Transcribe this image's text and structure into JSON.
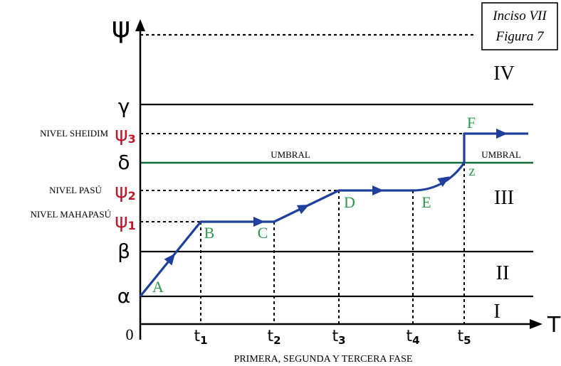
{
  "figure_box": {
    "line1": "Inciso VII",
    "line2": "Figura 7"
  },
  "axes": {
    "y_symbol": "ψ",
    "x_symbol": "T",
    "origin": "0",
    "caption": "PRIMERA, SEGUNDA Y TERCERA FASE"
  },
  "y_levels": {
    "alpha": "α",
    "beta": "β",
    "gamma": "γ",
    "delta": "δ",
    "psi1": {
      "base": "ψ",
      "sub": "1"
    },
    "psi2": {
      "base": "ψ",
      "sub": "2"
    },
    "psi3": {
      "base": "ψ",
      "sub": "3"
    }
  },
  "level_names": {
    "mahapasu": "NIVEL MAHAPASÚ",
    "pasu": "NIVEL PASÚ",
    "sheidim": "NIVEL SHEIDIM"
  },
  "threshold": {
    "label_center": "UMBRAL",
    "label_right": "UMBRAL"
  },
  "regions": {
    "I": "I",
    "II": "II",
    "III": "III",
    "IV": "IV"
  },
  "time_ticks": [
    {
      "base": "t",
      "sub": "1"
    },
    {
      "base": "t",
      "sub": "2"
    },
    {
      "base": "t",
      "sub": "3"
    },
    {
      "base": "t",
      "sub": "4"
    },
    {
      "base": "t",
      "sub": "5"
    }
  ],
  "points": {
    "A": "A",
    "B": "B",
    "C": "C",
    "D": "D",
    "E": "E",
    "F": "F",
    "z": "z"
  },
  "colors": {
    "axis": "#000000",
    "trajectory": "#1f3f9c",
    "threshold": "#136b36",
    "psi_label": "#c0182d",
    "point_label": "#2a9a4a"
  }
}
